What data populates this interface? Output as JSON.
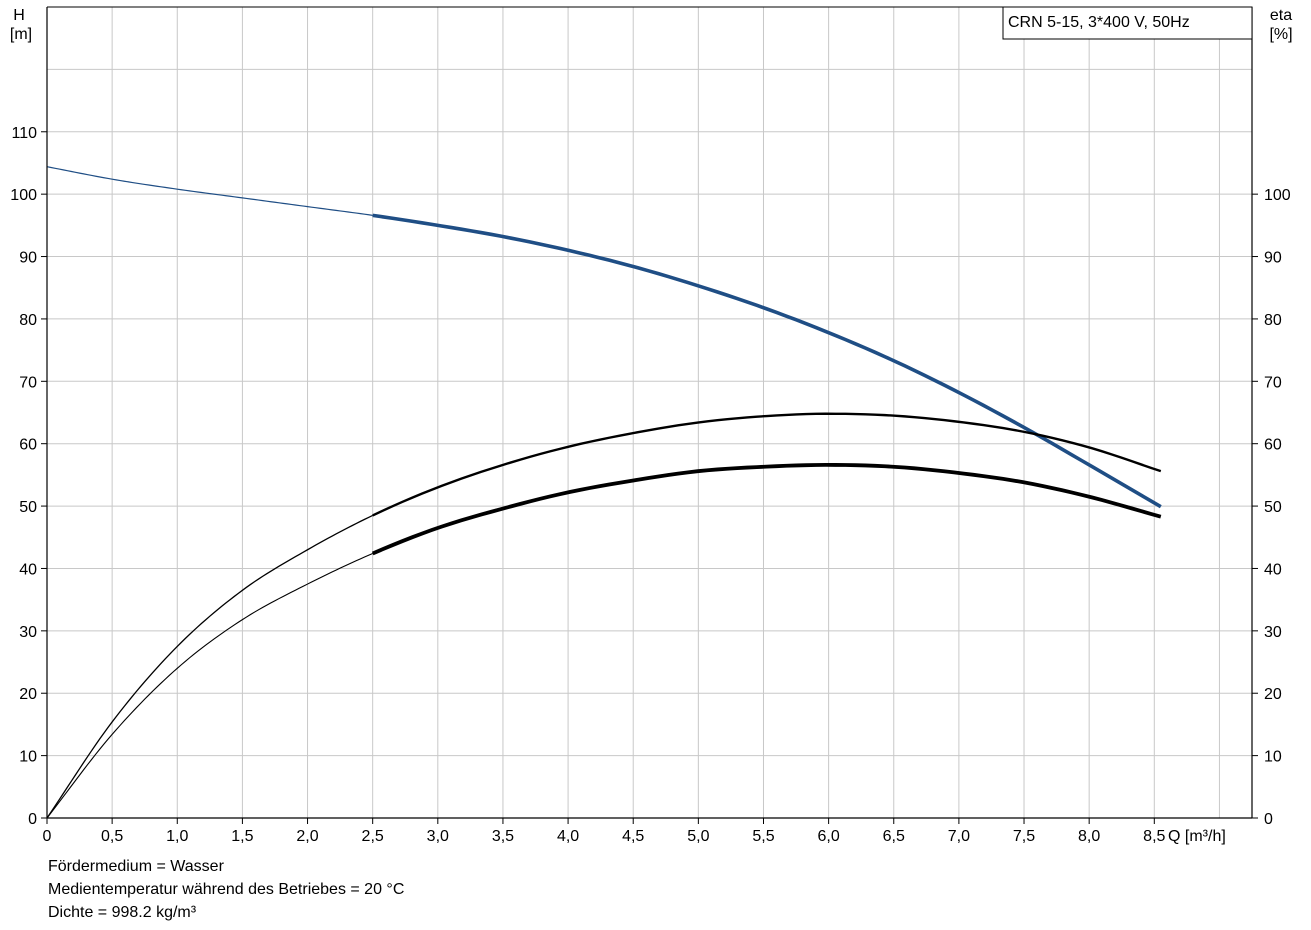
{
  "chart_data": {
    "type": "line",
    "title": "CRN 5-15, 3*400 V, 50Hz",
    "xlabel": "Q [m³/h]",
    "ylabel_left": {
      "name": "H",
      "unit": "[m]"
    },
    "ylabel_right": {
      "name": "eta",
      "unit": "[%]"
    },
    "xlim": [
      0,
      9.25
    ],
    "ylim_left": [
      0,
      130
    ],
    "ylim_right": [
      0,
      130
    ],
    "x_ticks": [
      0,
      0.5,
      1.0,
      1.5,
      2.0,
      2.5,
      3.0,
      3.5,
      4.0,
      4.5,
      5.0,
      5.5,
      6.0,
      6.5,
      7.0,
      7.5,
      8.0,
      8.5
    ],
    "x_tick_labels": [
      "0",
      "0,5",
      "1,0",
      "1,5",
      "2,0",
      "2,5",
      "3,0",
      "3,5",
      "4,0",
      "4,5",
      "5,0",
      "5,5",
      "6,0",
      "6,5",
      "7,0",
      "7,5",
      "8,0",
      "8,5"
    ],
    "y_ticks_left": [
      0,
      10,
      20,
      30,
      40,
      50,
      60,
      70,
      80,
      90,
      100,
      110
    ],
    "y_tick_labels_left": [
      "0",
      "10",
      "20",
      "30",
      "40",
      "50",
      "60",
      "70",
      "80",
      "90",
      "100",
      "110"
    ],
    "y_ticks_right": [
      0,
      10,
      20,
      30,
      40,
      50,
      60,
      70,
      80,
      90,
      100
    ],
    "y_tick_labels_right": [
      "0",
      "10",
      "20",
      "30",
      "40",
      "50",
      "60",
      "70",
      "80",
      "90",
      "100"
    ],
    "grid": true,
    "legend": "top-right",
    "colors": {
      "head": "#1f4e85",
      "eta": "#000000",
      "grid": "#c8c8c8"
    },
    "series": [
      {
        "axis": "left",
        "color": "#1f4e85",
        "operating_range_from": 2.5,
        "x": [
          0.0,
          0.5,
          1.0,
          1.5,
          2.0,
          2.5,
          3.0,
          3.5,
          4.0,
          4.5,
          5.0,
          5.5,
          6.0,
          6.5,
          7.0,
          7.5,
          8.0,
          8.55
        ],
        "values": [
          104.4,
          102.4,
          100.8,
          99.4,
          98.0,
          96.6,
          95.0,
          93.2,
          91.0,
          88.4,
          85.3,
          81.8,
          77.8,
          73.3,
          68.2,
          62.6,
          56.6,
          49.9
        ]
      },
      {
        "axis": "right",
        "color": "#000000",
        "operating_range_from": 2.5,
        "x": [
          0.0,
          0.5,
          1.0,
          1.5,
          2.0,
          2.5,
          3.0,
          3.5,
          4.0,
          4.5,
          5.0,
          5.5,
          6.0,
          6.5,
          7.0,
          7.5,
          8.0,
          8.55
        ],
        "values": [
          0.0,
          15.4,
          27.5,
          36.5,
          43.0,
          48.5,
          53.0,
          56.6,
          59.5,
          61.7,
          63.4,
          64.4,
          64.8,
          64.5,
          63.5,
          61.9,
          59.4,
          55.6
        ]
      },
      {
        "axis": "right",
        "color": "#000000",
        "operating_range_from": 2.5,
        "x": [
          0.0,
          0.5,
          1.0,
          1.5,
          2.0,
          2.5,
          3.0,
          3.5,
          4.0,
          4.5,
          5.0,
          5.5,
          6.0,
          6.5,
          7.0,
          7.5,
          8.0,
          8.55
        ],
        "values": [
          0.0,
          13.4,
          24.0,
          31.8,
          37.5,
          42.4,
          46.5,
          49.6,
          52.2,
          54.1,
          55.6,
          56.3,
          56.6,
          56.3,
          55.3,
          53.8,
          51.5,
          48.3
        ]
      }
    ]
  },
  "notes": [
    "Fördermedium = Wasser",
    "Medientemperatur während des Betriebes = 20 °C",
    "Dichte = 998.2 kg/m³"
  ]
}
